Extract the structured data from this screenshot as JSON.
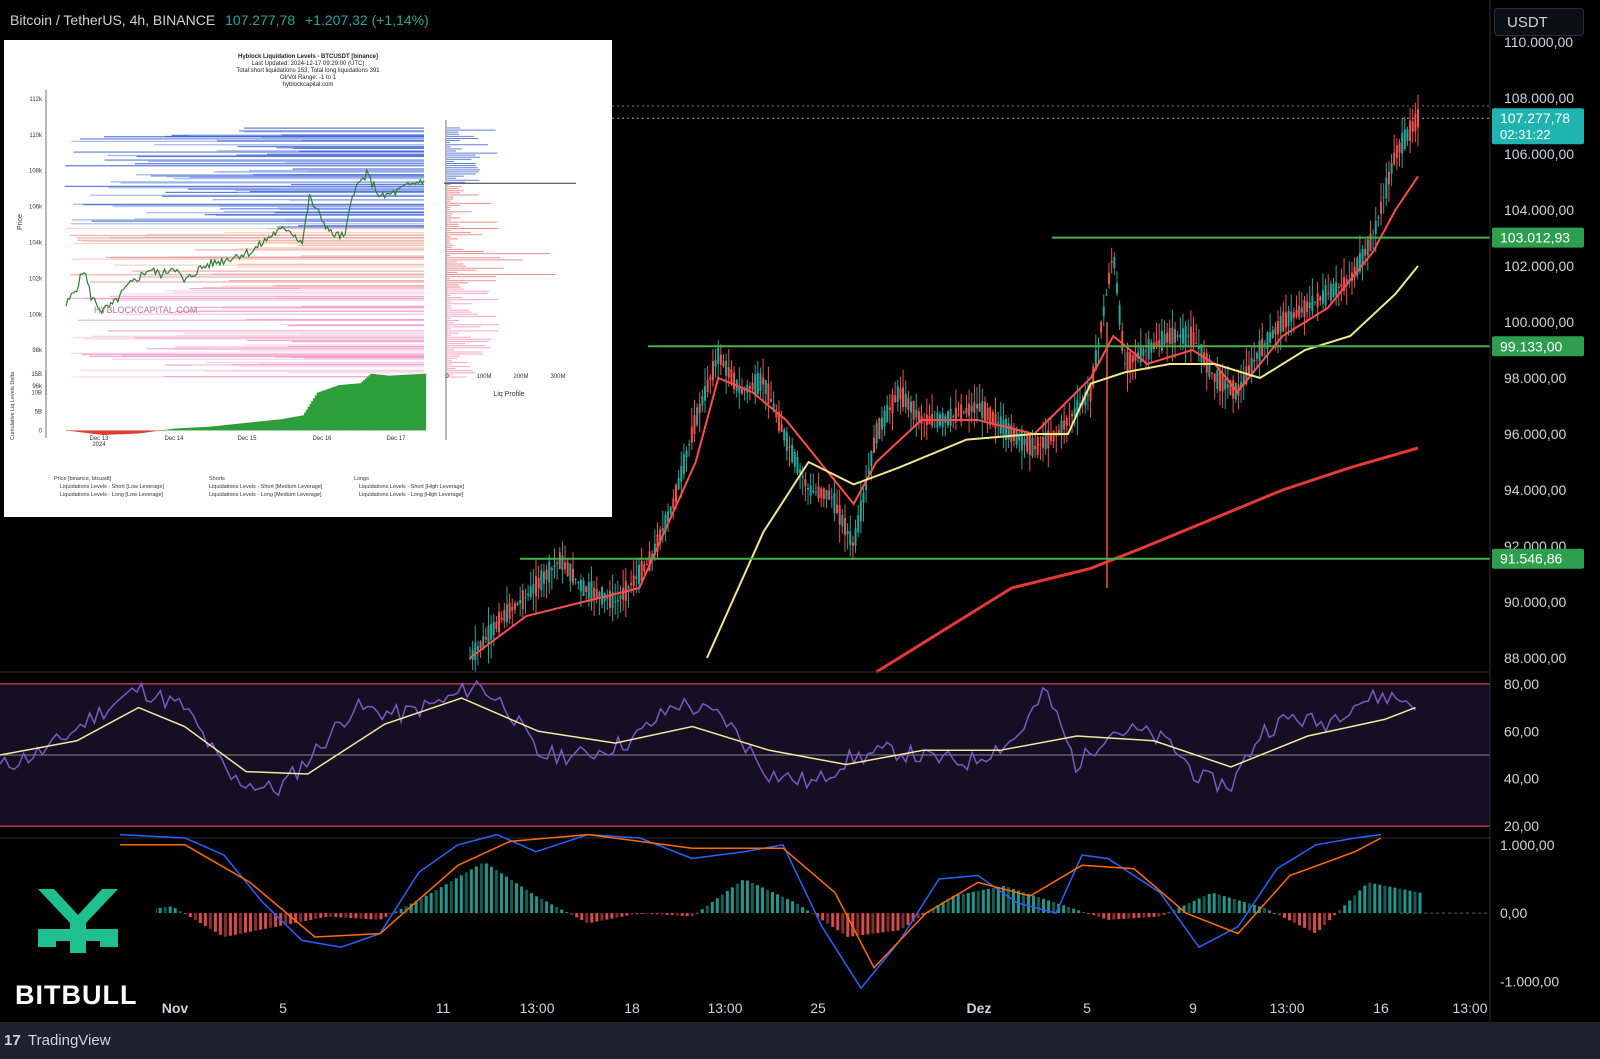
{
  "header": {
    "symbol": "Bitcoin / TetherUS, 4h, BINANCE",
    "price": "107.277,78",
    "change": "+1.207,32 (+1,14%)"
  },
  "currency_button": "USDT",
  "branding": {
    "logo_text": "BITBULL",
    "platform": "TradingView",
    "platform_icon": "17"
  },
  "colors": {
    "up": "#26a69a",
    "down": "#ef5350",
    "level_line": "#4caf50",
    "ma_fast": "#ff4c4c",
    "ma_yellow": "#f0e68c",
    "ma_red": "#e53935",
    "rsi": "#7e57c2",
    "macd": "#2962ff",
    "signal": "#ff6d00"
  },
  "chart_data": [
    {
      "type": "line",
      "name": "main-price",
      "title": "",
      "y_ticks": [
        "110.000,00",
        "108.000,00",
        "106.000,00",
        "104.000,00",
        "102.000,00",
        "100.000,00",
        "98.000,00",
        "96.000,00",
        "94.000,00",
        "92.000,00",
        "90.000,00",
        "88.000,00"
      ],
      "y_range": [
        87500,
        111500
      ],
      "x_labels": [
        "Nov",
        "5",
        "11",
        "13:00",
        "18",
        "13:00",
        "25",
        "Dez",
        "5",
        "9",
        "13:00",
        "16",
        "13:00"
      ],
      "levels": [
        {
          "label": "103.012,93",
          "value": 103012.93
        },
        {
          "label": "99.133,00",
          "value": 99133
        },
        {
          "label": "91.546,86",
          "value": 91546.86
        }
      ],
      "current_price": {
        "label": "107.277,78",
        "countdown": "02:31:22",
        "value": 107277.78
      },
      "price_path": [
        [
          0.0,
          88000
        ],
        [
          0.03,
          89500
        ],
        [
          0.05,
          90200
        ],
        [
          0.08,
          91500
        ],
        [
          0.1,
          90500
        ],
        [
          0.13,
          90000
        ],
        [
          0.16,
          91500
        ],
        [
          0.18,
          93500
        ],
        [
          0.2,
          96500
        ],
        [
          0.22,
          98800
        ],
        [
          0.24,
          97500
        ],
        [
          0.26,
          97900
        ],
        [
          0.28,
          95800
        ],
        [
          0.3,
          94000
        ],
        [
          0.32,
          93800
        ],
        [
          0.34,
          92000
        ],
        [
          0.36,
          96000
        ],
        [
          0.38,
          97500
        ],
        [
          0.4,
          96500
        ],
        [
          0.42,
          96500
        ],
        [
          0.45,
          97000
        ],
        [
          0.48,
          96000
        ],
        [
          0.5,
          95500
        ],
        [
          0.52,
          96000
        ],
        [
          0.55,
          97500
        ],
        [
          0.57,
          102500
        ],
        [
          0.58,
          98500
        ],
        [
          0.6,
          99000
        ],
        [
          0.62,
          99500
        ],
        [
          0.64,
          99500
        ],
        [
          0.66,
          98000
        ],
        [
          0.68,
          97500
        ],
        [
          0.7,
          99000
        ],
        [
          0.72,
          100000
        ],
        [
          0.74,
          100500
        ],
        [
          0.76,
          101000
        ],
        [
          0.78,
          101500
        ],
        [
          0.8,
          103000
        ],
        [
          0.82,
          106000
        ],
        [
          0.84,
          107277
        ]
      ],
      "ma_fast_path": [
        [
          0.0,
          88000
        ],
        [
          0.05,
          89500
        ],
        [
          0.1,
          90000
        ],
        [
          0.15,
          90500
        ],
        [
          0.2,
          95000
        ],
        [
          0.22,
          98000
        ],
        [
          0.25,
          97500
        ],
        [
          0.28,
          96500
        ],
        [
          0.32,
          94500
        ],
        [
          0.34,
          93500
        ],
        [
          0.36,
          95000
        ],
        [
          0.4,
          96500
        ],
        [
          0.45,
          96500
        ],
        [
          0.5,
          96000
        ],
        [
          0.55,
          98000
        ],
        [
          0.57,
          99500
        ],
        [
          0.6,
          98500
        ],
        [
          0.64,
          99000
        ],
        [
          0.66,
          98500
        ],
        [
          0.68,
          97500
        ],
        [
          0.72,
          99500
        ],
        [
          0.76,
          100500
        ],
        [
          0.8,
          102500
        ],
        [
          0.82,
          104000
        ],
        [
          0.84,
          105200
        ]
      ],
      "ma_yellow_path": [
        [
          0.21,
          88000
        ],
        [
          0.26,
          92500
        ],
        [
          0.3,
          95000
        ],
        [
          0.34,
          94200
        ],
        [
          0.38,
          94800
        ],
        [
          0.44,
          95800
        ],
        [
          0.5,
          96000
        ],
        [
          0.53,
          96000
        ],
        [
          0.55,
          97800
        ],
        [
          0.58,
          98200
        ],
        [
          0.62,
          98500
        ],
        [
          0.66,
          98500
        ],
        [
          0.7,
          98000
        ],
        [
          0.74,
          99000
        ],
        [
          0.78,
          99500
        ],
        [
          0.82,
          101000
        ],
        [
          0.84,
          102000
        ]
      ],
      "ma_red_path": [
        [
          0.36,
          87500
        ],
        [
          0.42,
          89000
        ],
        [
          0.48,
          90500
        ],
        [
          0.55,
          91200
        ],
        [
          0.6,
          92000
        ],
        [
          0.66,
          93000
        ],
        [
          0.72,
          94000
        ],
        [
          0.78,
          94800
        ],
        [
          0.84,
          95500
        ]
      ]
    },
    {
      "type": "line",
      "name": "rsi",
      "y_ticks": [
        "80,00",
        "60,00",
        "40,00",
        "20,00"
      ],
      "y_range": [
        15,
        85
      ],
      "rsi_path": [
        [
          0.0,
          45
        ],
        [
          0.03,
          52
        ],
        [
          0.06,
          66
        ],
        [
          0.09,
          78
        ],
        [
          0.12,
          70
        ],
        [
          0.15,
          40
        ],
        [
          0.18,
          35
        ],
        [
          0.2,
          48
        ],
        [
          0.23,
          70
        ],
        [
          0.26,
          67
        ],
        [
          0.29,
          73
        ],
        [
          0.31,
          80
        ],
        [
          0.33,
          70
        ],
        [
          0.35,
          50
        ],
        [
          0.38,
          50
        ],
        [
          0.41,
          56
        ],
        [
          0.44,
          72
        ],
        [
          0.47,
          66
        ],
        [
          0.5,
          42
        ],
        [
          0.53,
          38
        ],
        [
          0.55,
          48
        ],
        [
          0.58,
          52
        ],
        [
          0.6,
          49
        ],
        [
          0.63,
          47
        ],
        [
          0.66,
          57
        ],
        [
          0.68,
          77
        ],
        [
          0.7,
          45
        ],
        [
          0.72,
          60
        ],
        [
          0.74,
          60
        ],
        [
          0.76,
          55
        ],
        [
          0.78,
          40
        ],
        [
          0.8,
          37
        ],
        [
          0.82,
          60
        ],
        [
          0.84,
          66
        ],
        [
          0.86,
          63
        ],
        [
          0.88,
          72
        ],
        [
          0.9,
          75
        ],
        [
          0.92,
          72
        ]
      ],
      "signal_path": [
        [
          0.0,
          50
        ],
        [
          0.05,
          56
        ],
        [
          0.09,
          70
        ],
        [
          0.12,
          62
        ],
        [
          0.16,
          43
        ],
        [
          0.2,
          42
        ],
        [
          0.25,
          63
        ],
        [
          0.3,
          74
        ],
        [
          0.35,
          60
        ],
        [
          0.4,
          55
        ],
        [
          0.45,
          62
        ],
        [
          0.5,
          52
        ],
        [
          0.55,
          46
        ],
        [
          0.6,
          52
        ],
        [
          0.65,
          52
        ],
        [
          0.7,
          58
        ],
        [
          0.75,
          56
        ],
        [
          0.8,
          45
        ],
        [
          0.85,
          58
        ],
        [
          0.9,
          65
        ],
        [
          0.92,
          70
        ]
      ]
    },
    {
      "type": "bar",
      "name": "macd",
      "y_ticks": [
        "1.000,00",
        "0,00",
        "-1.000,00"
      ],
      "y_range": [
        -1200,
        1100
      ],
      "macd_path": [
        [
          0.0,
          1200
        ],
        [
          0.05,
          1100
        ],
        [
          0.08,
          850
        ],
        [
          0.11,
          150
        ],
        [
          0.14,
          -400
        ],
        [
          0.17,
          -500
        ],
        [
          0.2,
          -300
        ],
        [
          0.23,
          600
        ],
        [
          0.26,
          1000
        ],
        [
          0.29,
          1250
        ],
        [
          0.32,
          900
        ],
        [
          0.36,
          1250
        ],
        [
          0.4,
          1100
        ],
        [
          0.44,
          800
        ],
        [
          0.48,
          900
        ],
        [
          0.51,
          1000
        ],
        [
          0.54,
          -200
        ],
        [
          0.57,
          -1100
        ],
        [
          0.6,
          -400
        ],
        [
          0.63,
          500
        ],
        [
          0.66,
          550
        ],
        [
          0.69,
          150
        ],
        [
          0.72,
          0
        ],
        [
          0.74,
          850
        ],
        [
          0.76,
          800
        ],
        [
          0.8,
          300
        ],
        [
          0.83,
          -500
        ],
        [
          0.86,
          -200
        ],
        [
          0.89,
          650
        ],
        [
          0.92,
          1000
        ],
        [
          0.95,
          1100
        ],
        [
          0.97,
          1300
        ]
      ],
      "signal_path": [
        [
          0.0,
          1000
        ],
        [
          0.05,
          1000
        ],
        [
          0.1,
          450
        ],
        [
          0.15,
          -350
        ],
        [
          0.2,
          -300
        ],
        [
          0.26,
          700
        ],
        [
          0.3,
          1050
        ],
        [
          0.36,
          1150
        ],
        [
          0.44,
          950
        ],
        [
          0.51,
          950
        ],
        [
          0.55,
          300
        ],
        [
          0.58,
          -800
        ],
        [
          0.62,
          0
        ],
        [
          0.66,
          450
        ],
        [
          0.7,
          250
        ],
        [
          0.74,
          700
        ],
        [
          0.78,
          650
        ],
        [
          0.82,
          0
        ],
        [
          0.86,
          -300
        ],
        [
          0.9,
          550
        ],
        [
          0.95,
          900
        ],
        [
          0.97,
          1100
        ]
      ],
      "hist_path": [
        [
          0.0,
          0
        ],
        [
          0.04,
          100
        ],
        [
          0.08,
          -350
        ],
        [
          0.12,
          -200
        ],
        [
          0.16,
          -50
        ],
        [
          0.2,
          -100
        ],
        [
          0.24,
          300
        ],
        [
          0.28,
          750
        ],
        [
          0.32,
          250
        ],
        [
          0.36,
          -150
        ],
        [
          0.4,
          0
        ],
        [
          0.44,
          -50
        ],
        [
          0.48,
          500
        ],
        [
          0.52,
          150
        ],
        [
          0.56,
          -350
        ],
        [
          0.6,
          -250
        ],
        [
          0.64,
          250
        ],
        [
          0.68,
          400
        ],
        [
          0.72,
          150
        ],
        [
          0.76,
          -100
        ],
        [
          0.8,
          -50
        ],
        [
          0.84,
          300
        ],
        [
          0.88,
          80
        ],
        [
          0.92,
          -300
        ],
        [
          0.96,
          450
        ],
        [
          1.0,
          300
        ]
      ]
    },
    {
      "type": "bar",
      "name": "hyblock-liquidation-inset",
      "title": "Hyblock Liquidation Levels - BTCUSDT [binance]",
      "subtitle_lines": [
        "Last Updated: 2024-12-17 09:29:00 (UTC)",
        "Total short liquidations 153, Total long liquidations 391",
        "OI/Vol Range: -1 to 1",
        "hyblockcapital.com"
      ],
      "watermark": "HYBLOCKCAPITAL.COM",
      "ylabel": "Price",
      "y_ticks": [
        "112k",
        "110k",
        "108k",
        "106k",
        "104k",
        "102k",
        "100k",
        "98k",
        "96k"
      ],
      "y_range": [
        95500,
        112500
      ],
      "x_labels": [
        "Dec 13",
        "2024",
        "Dec 14",
        "Dec 15",
        "Dec 16",
        "Dec 17"
      ],
      "profile_ticks": [
        "0",
        "100M",
        "200M",
        "300M"
      ],
      "profile_label": "Liq Profile",
      "delta_label": "Cumulative Liq Levels Delta",
      "delta_ticks": [
        "15B",
        "10B",
        "5B",
        "0"
      ],
      "delta_range": [
        -2,
        16
      ],
      "legend": [
        "Price [binance, btcusdt]",
        "Liquidations Levels - Short [Low Leverage]",
        "Liquidations Levels - Long [Low Leverage]",
        "Shorts",
        "Liquidations Levels - Short [Medium Leverage]",
        "Liquidations Levels - Long [Medium Leverage]",
        "Longs",
        "Liquidations Levels - Short [High Leverage]",
        "Liquidations Levels - Long [High Leverage]"
      ],
      "price_path": [
        [
          0.0,
          100500
        ],
        [
          0.03,
          101500
        ],
        [
          0.05,
          102500
        ],
        [
          0.07,
          101000
        ],
        [
          0.1,
          100200
        ],
        [
          0.13,
          100500
        ],
        [
          0.17,
          101500
        ],
        [
          0.2,
          102000
        ],
        [
          0.23,
          102500
        ],
        [
          0.27,
          102200
        ],
        [
          0.3,
          102700
        ],
        [
          0.33,
          101800
        ],
        [
          0.37,
          102500
        ],
        [
          0.4,
          102800
        ],
        [
          0.44,
          103000
        ],
        [
          0.48,
          103300
        ],
        [
          0.52,
          103500
        ],
        [
          0.55,
          104000
        ],
        [
          0.58,
          104500
        ],
        [
          0.62,
          104800
        ],
        [
          0.66,
          104000
        ],
        [
          0.68,
          106500
        ],
        [
          0.7,
          105800
        ],
        [
          0.74,
          104500
        ],
        [
          0.78,
          104300
        ],
        [
          0.8,
          106800
        ],
        [
          0.84,
          107800
        ],
        [
          0.88,
          106500
        ],
        [
          0.92,
          106800
        ],
        [
          0.96,
          107200
        ],
        [
          1.0,
          107500
        ]
      ],
      "delta_path": [
        [
          0.0,
          0
        ],
        [
          0.04,
          -0.5
        ],
        [
          0.1,
          -1.2
        ],
        [
          0.2,
          -0.8
        ],
        [
          0.3,
          0.5
        ],
        [
          0.4,
          1
        ],
        [
          0.5,
          2
        ],
        [
          0.6,
          3
        ],
        [
          0.66,
          4
        ],
        [
          0.7,
          10
        ],
        [
          0.76,
          12
        ],
        [
          0.82,
          12.5
        ],
        [
          0.85,
          15
        ],
        [
          0.9,
          14.5
        ],
        [
          1.0,
          15
        ]
      ]
    }
  ]
}
